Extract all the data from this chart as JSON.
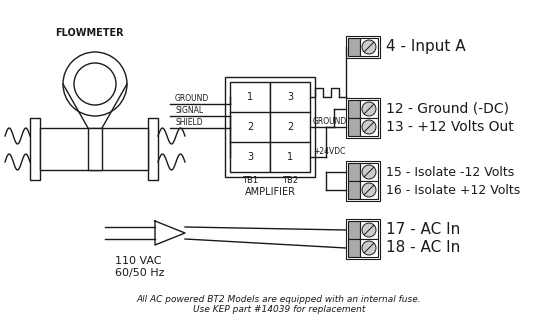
{
  "bg_color": "#ffffff",
  "line_color": "#1a1a1a",
  "gray_color": "#888888",
  "title": "FLOWMETER",
  "amplifier_label": "AMPLIFIER",
  "tb1_label": "TB1",
  "tb2_label": "TB2",
  "ground_label": "GROUND",
  "signal_label": "SIGNAL",
  "shield_label": "SHIELD",
  "ground2_label": "GROUND",
  "vdc_label": "+24VDC",
  "vac_label": "110 VAC",
  "hz_label": "60/50 Hz",
  "footnote1": "All AC powered BT2 Models are equipped with an internal fuse.",
  "footnote2": "Use KEP part #14039 for replacement",
  "terminals": [
    {
      "label": "4 - Input A"
    },
    {
      "label": "12 - Ground (-DC)"
    },
    {
      "label": "13 - +12 Volts Out"
    },
    {
      "label": "15 - Isolate -12 Volts"
    },
    {
      "label": "16 - Isolate +12 Volts"
    },
    {
      "label": "17 - AC In"
    },
    {
      "label": "18 - AC In"
    }
  ]
}
